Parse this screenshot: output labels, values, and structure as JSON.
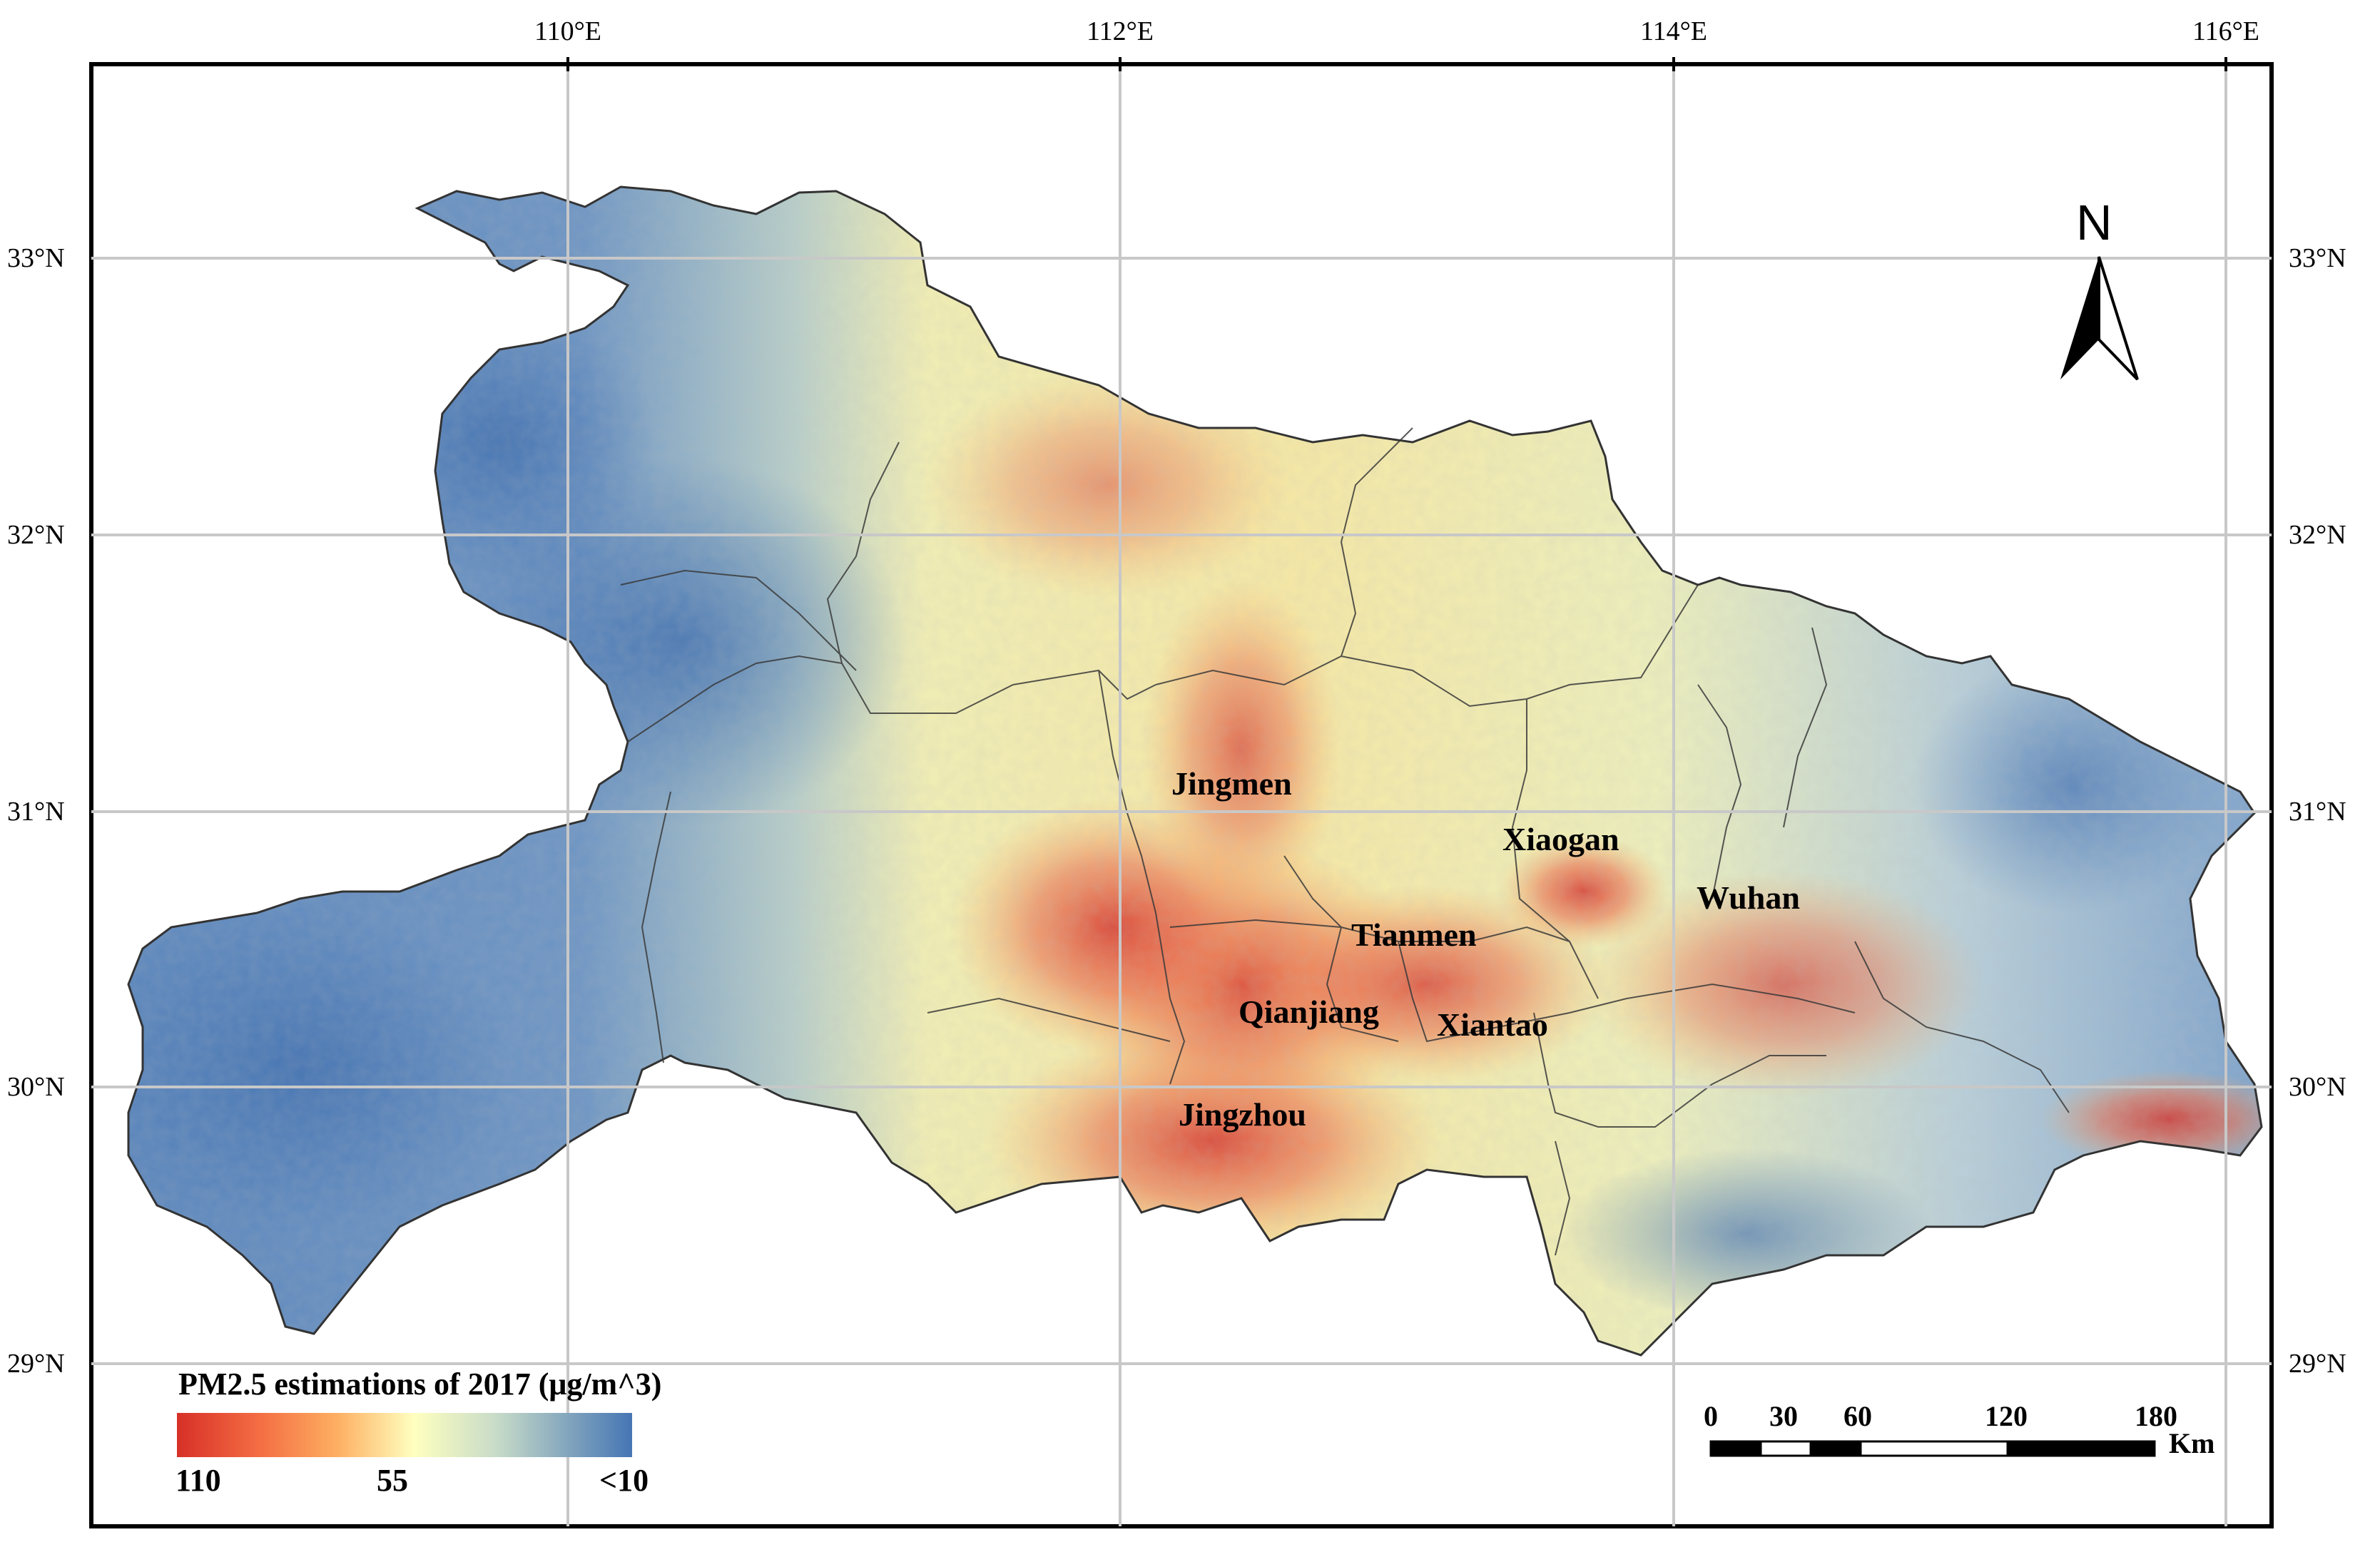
{
  "map": {
    "axis_ticks": {
      "longitude": [
        "110°E",
        "112°E",
        "114°E",
        "116°E"
      ],
      "latitude": [
        "33°N",
        "32°N",
        "31°N",
        "30°N",
        "29°N"
      ]
    },
    "cities": [
      {
        "name": "Jingmen",
        "pm25_level": "high"
      },
      {
        "name": "Xiaogan",
        "pm25_level": "high"
      },
      {
        "name": "Wuhan",
        "pm25_level": "high"
      },
      {
        "name": "Tianmen",
        "pm25_level": "high"
      },
      {
        "name": "Qianjiang",
        "pm25_level": "high"
      },
      {
        "name": "Xiantao",
        "pm25_level": "high"
      },
      {
        "name": "Jingzhou",
        "pm25_level": "high"
      }
    ],
    "legend": {
      "title": "PM2.5 estimations of 2017",
      "unit": "(μg/m^3)",
      "max_label": "110",
      "mid_label": "55",
      "min_label": "<10",
      "colors": [
        "#d73027",
        "#f46d43",
        "#fdae61",
        "#fee090",
        "#ffffbf",
        "#e0f3d8",
        "#abd0e6",
        "#74a9cf",
        "#4575b4"
      ]
    },
    "scale_bar": {
      "labels": [
        "0",
        "30",
        "60",
        "120",
        "180"
      ],
      "unit": "Km"
    },
    "north_arrow": {
      "label": "N",
      "icon": "north-arrow-icon"
    },
    "colors": {
      "low": "#4575b4",
      "mid": "#ffffbf",
      "high": "#d73027",
      "boundary": "#333333",
      "graticule": "#c8c8c8"
    }
  }
}
